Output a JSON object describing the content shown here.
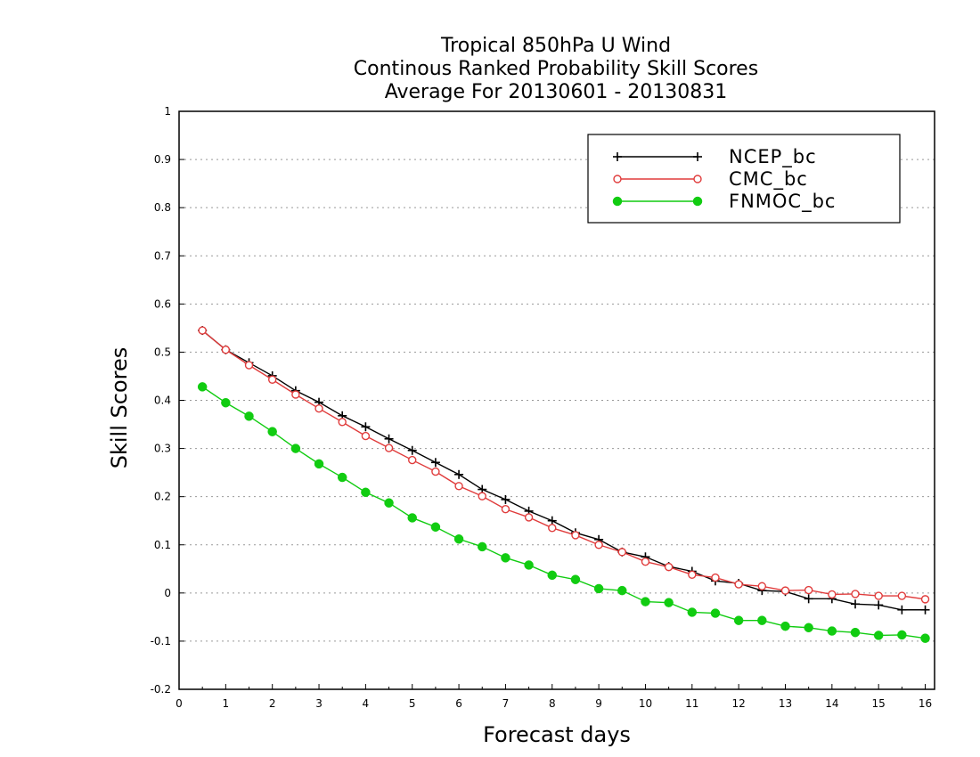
{
  "chart_data": {
    "type": "line",
    "title_lines": [
      "Tropical 850hPa U Wind",
      "Continous Ranked Probability Skill Scores",
      "Average For 20130601 - 20130831"
    ],
    "xlabel": "Forecast days",
    "ylabel": "Skill Scores",
    "xlim": [
      0,
      16.2
    ],
    "ylim": [
      -0.2,
      1
    ],
    "xticks": [
      0,
      1,
      2,
      3,
      4,
      5,
      6,
      7,
      8,
      9,
      10,
      11,
      12,
      13,
      14,
      15,
      16
    ],
    "xtick_labels": [
      "0",
      "1",
      "2",
      "3",
      "4",
      "5",
      "6",
      "7",
      "8",
      "9",
      "10",
      "11",
      "12",
      "13",
      "14",
      "15",
      "16"
    ],
    "yticks": [
      -0.2,
      -0.1,
      0,
      0.1,
      0.2,
      0.3,
      0.4,
      0.5,
      0.6,
      0.7,
      0.8,
      0.9,
      1
    ],
    "ytick_labels": [
      "-0.2",
      "-0.1",
      "0",
      "0.1",
      "0.2",
      "0.3",
      "0.4",
      "0.5",
      "0.6",
      "0.7",
      "0.8",
      "0.9",
      "1"
    ],
    "grid": "horizontal dotted",
    "legend_position": "top-right",
    "x": [
      0.5,
      1,
      1.5,
      2,
      2.5,
      3,
      3.5,
      4,
      4.5,
      5,
      5.5,
      6,
      6.5,
      7,
      7.5,
      8,
      8.5,
      9,
      9.5,
      10,
      10.5,
      11,
      11.5,
      12,
      12.5,
      13,
      13.5,
      14,
      14.5,
      15,
      15.5,
      16
    ],
    "series": [
      {
        "name": "NCEP_bc",
        "color": "#000000",
        "marker": "plus",
        "values": [
          0.545,
          0.505,
          0.478,
          0.451,
          0.42,
          0.396,
          0.368,
          0.345,
          0.32,
          0.296,
          0.271,
          0.246,
          0.215,
          0.194,
          0.17,
          0.15,
          0.125,
          0.111,
          0.085,
          0.075,
          0.055,
          0.045,
          0.025,
          0.02,
          0.005,
          0.003,
          -0.012,
          -0.012,
          -0.023,
          -0.025,
          -0.035,
          -0.035
        ]
      },
      {
        "name": "CMC_bc",
        "color": "#e03c3c",
        "marker": "open-circle",
        "values": [
          0.545,
          0.505,
          0.473,
          0.443,
          0.412,
          0.383,
          0.355,
          0.326,
          0.301,
          0.276,
          0.252,
          0.222,
          0.201,
          0.174,
          0.157,
          0.135,
          0.12,
          0.1,
          0.085,
          0.065,
          0.054,
          0.038,
          0.032,
          0.018,
          0.014,
          0.005,
          0.006,
          -0.003,
          -0.002,
          -0.006,
          -0.006,
          -0.013
        ]
      },
      {
        "name": "FNMOC_bc",
        "color": "#11cc11",
        "marker": "filled-circle",
        "values": [
          0.428,
          0.395,
          0.367,
          0.335,
          0.3,
          0.268,
          0.24,
          0.209,
          0.187,
          0.156,
          0.137,
          0.112,
          0.096,
          0.073,
          0.058,
          0.037,
          0.028,
          0.009,
          0.005,
          -0.018,
          -0.02,
          -0.04,
          -0.042,
          -0.057,
          -0.057,
          -0.069,
          -0.072,
          -0.079,
          -0.082,
          -0.088,
          -0.087,
          -0.094
        ]
      }
    ]
  }
}
